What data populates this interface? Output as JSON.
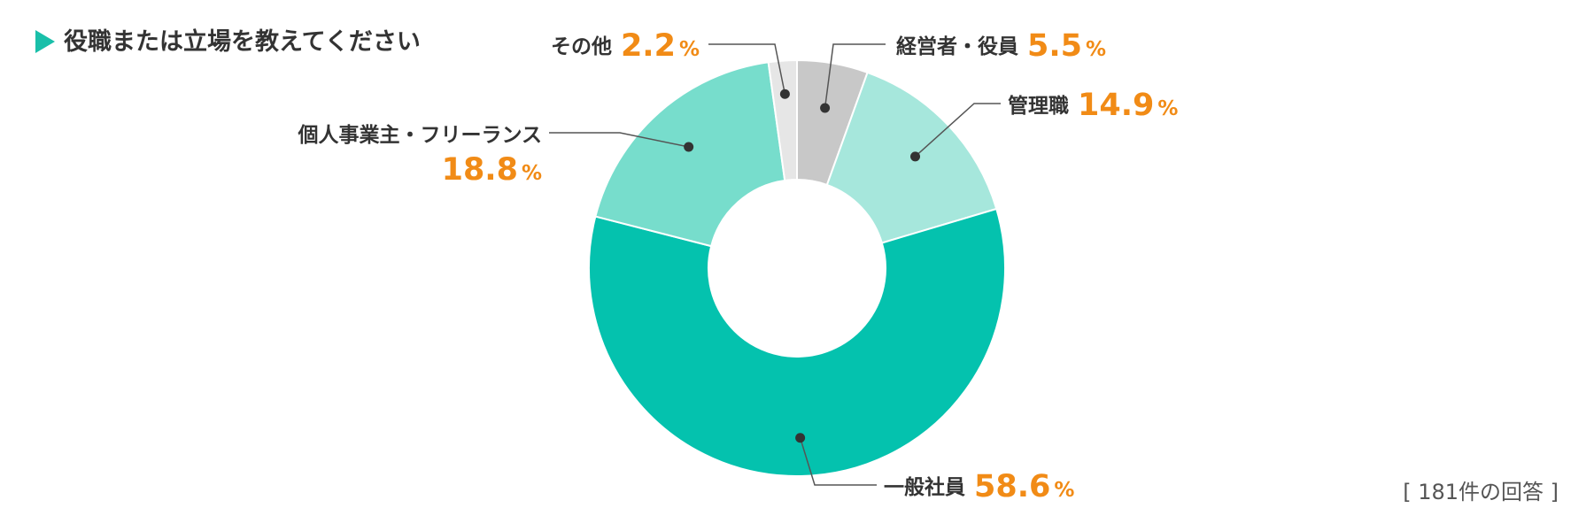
{
  "title": "役職または立場を教えてください",
  "note": "[ 181件の回答 ]",
  "colors": {
    "accent_marker": "#19BFA9",
    "percent_text": "#F18B16",
    "leader_line": "#555555"
  },
  "chart_data": {
    "type": "pie",
    "style": "donut",
    "unit": "%",
    "slices": [
      {
        "label": "経営者・役員",
        "value": 5.5,
        "value_text": "5.5",
        "color": "#C8C8C8"
      },
      {
        "label": "管理職",
        "value": 14.9,
        "value_text": "14.9",
        "color": "#A6E7DC"
      },
      {
        "label": "一般社員",
        "value": 58.6,
        "value_text": "58.6",
        "color": "#04C2AE"
      },
      {
        "label": "個人事業主・フリーランス",
        "value": 18.8,
        "value_text": "18.8",
        "color": "#77DDCC"
      },
      {
        "label": "その他",
        "value": 2.2,
        "value_text": "2.2",
        "color": "#E6E6E6"
      }
    ]
  }
}
